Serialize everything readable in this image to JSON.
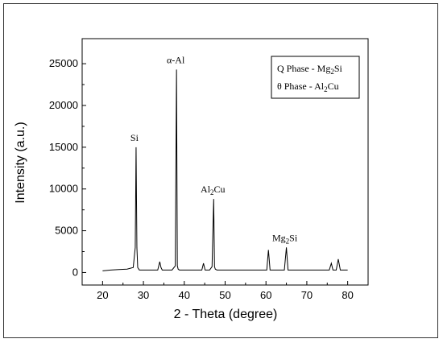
{
  "chart_data": {
    "type": "line",
    "xlabel": "2 - Theta (degree)",
    "ylabel": "Intensity (a.u.)",
    "xlim": [
      15,
      85
    ],
    "ylim": [
      -1500,
      28000
    ],
    "xticks": [
      20,
      30,
      40,
      50,
      60,
      70,
      80
    ],
    "yticks": [
      0,
      5000,
      10000,
      15000,
      20000,
      25000
    ],
    "xtick_labels": [
      "20",
      "30",
      "40",
      "50",
      "60",
      "70",
      "80"
    ],
    "ytick_labels": [
      "0",
      "5000",
      "10000",
      "15000",
      "20000",
      "25000"
    ],
    "series": [
      {
        "x": [
          20,
          22,
          24,
          26,
          27.5,
          28.0,
          28.2,
          28.4,
          28.6,
          29,
          31,
          33.5,
          34.0,
          34.3,
          34.6,
          35.2,
          37,
          37.8,
          38.1,
          38.3,
          38.5,
          38.8,
          39.5,
          42,
          44.3,
          44.7,
          45.1,
          46.2,
          46.8,
          47.2,
          47.4,
          47.6,
          48.0,
          49,
          52,
          55,
          58,
          60.2,
          60.6,
          61.0,
          63,
          64.5,
          65.0,
          65.4,
          66,
          68,
          72,
          75.5,
          76.0,
          76.4,
          77.2,
          77.7,
          78.2,
          79,
          80
        ],
        "y": [
          200,
          300,
          350,
          400,
          600,
          3000,
          15000,
          3000,
          600,
          300,
          300,
          300,
          1300,
          600,
          300,
          300,
          300,
          800,
          24300,
          800,
          400,
          300,
          300,
          300,
          300,
          1100,
          300,
          300,
          700,
          8800,
          700,
          400,
          300,
          300,
          300,
          300,
          300,
          300,
          2700,
          300,
          300,
          300,
          3000,
          300,
          300,
          300,
          300,
          300,
          1100,
          300,
          300,
          1600,
          300,
          300,
          300
        ]
      }
    ],
    "annotations": [
      {
        "text": "Si",
        "x": 28.2
      },
      {
        "text": "α-Al",
        "x": 38.3
      },
      {
        "text": "Al",
        "sub": "2",
        "text2": "Cu",
        "x": 47.4
      },
      {
        "text": "Mg",
        "sub": "2",
        "text2": "Si",
        "x": 65.0
      }
    ],
    "legend": {
      "placement": "top-right",
      "entries": [
        {
          "text": "Q Phase   -   Mg",
          "sub": "2",
          "text2": "Si"
        },
        {
          "text": "θ Phase   -   Al",
          "sub": "2",
          "text2": "Cu"
        }
      ]
    },
    "line_color": "#000000",
    "grid": false
  }
}
